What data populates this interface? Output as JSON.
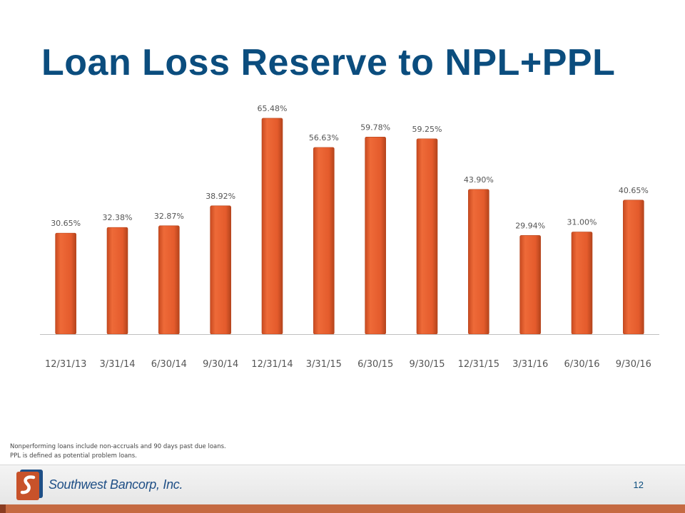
{
  "slide": {
    "title": "Loan Loss Reserve to NPL+PPL",
    "footnotes": [
      "Nonperforming loans include non-accruals and 90 days past due loans.",
      "PPL is defined as potential problem loans."
    ],
    "company_name": "Southwest Bancorp, Inc.",
    "page_number": "12"
  },
  "colors": {
    "title": "#0b4d7e",
    "bar": "#e45b2c",
    "bar_dark": "#b4441c",
    "axis": "#bfbfbf",
    "label": "#555555"
  },
  "chart_data": {
    "type": "bar",
    "categories": [
      "12/31/13",
      "3/31/14",
      "6/30/14",
      "9/30/14",
      "12/31/14",
      "3/31/15",
      "6/30/15",
      "9/30/15",
      "12/31/15",
      "3/31/16",
      "6/30/16",
      "9/30/16"
    ],
    "values": [
      30.65,
      32.38,
      32.87,
      38.92,
      65.48,
      56.63,
      59.78,
      59.25,
      43.9,
      29.94,
      31.0,
      40.65
    ],
    "data_labels": [
      "30.65%",
      "32.38%",
      "32.87%",
      "38.92%",
      "65.48%",
      "56.63%",
      "59.78%",
      "59.25%",
      "43.90%",
      "29.94%",
      "31.00%",
      "40.65%"
    ],
    "ylim": [
      0,
      70
    ],
    "grid": false,
    "legend": "none"
  }
}
